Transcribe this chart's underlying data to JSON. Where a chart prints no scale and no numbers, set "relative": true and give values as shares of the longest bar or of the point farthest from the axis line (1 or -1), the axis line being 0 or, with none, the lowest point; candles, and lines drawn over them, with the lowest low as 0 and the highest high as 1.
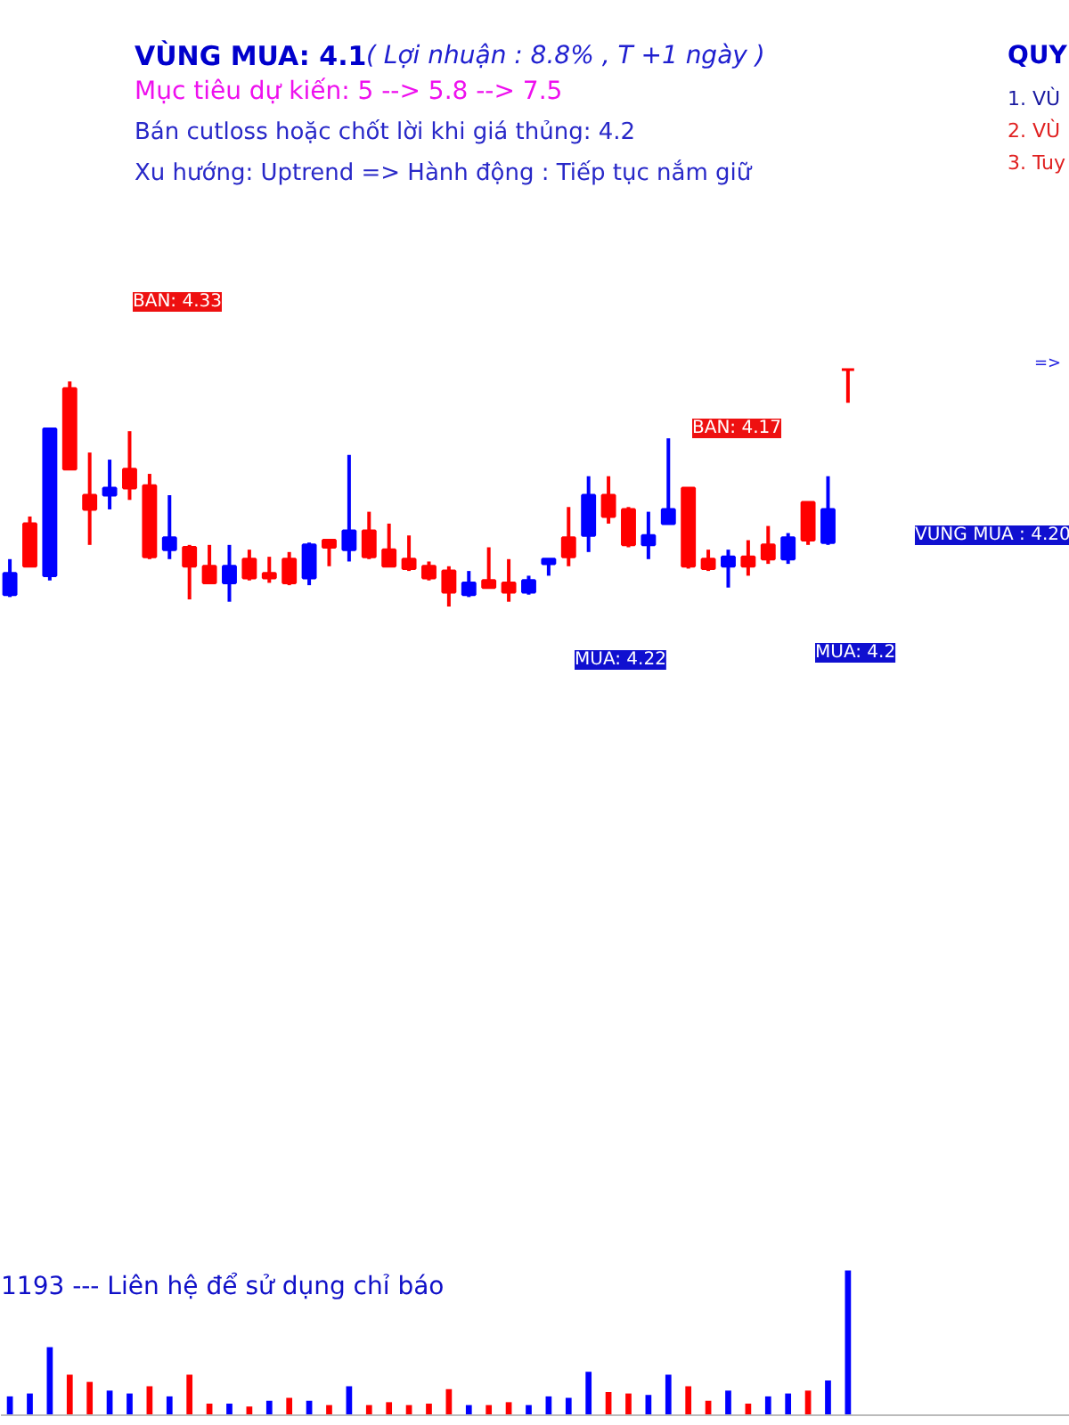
{
  "chart_data": [
    {
      "type": "candlestick",
      "title": "VÙNG MUA:  4.1",
      "subtitle": "( Lợi nhuận  : 8.8% ,  T +1 ngày )",
      "relative": true,
      "annotations": [
        "Mục tiêu dự kiến:  5 --> 5.8 --> 7.5",
        "Bán cutloss hoặc chốt lời khi giá thủng:  4.2",
        "Xu hướng:  Uptrend  => Hành động : Tiếp tục nắm giữ",
        "QUY",
        "1. VÙ",
        "2. VÙ",
        "3. Tuy",
        "=>",
        "MUA: 4.22",
        "MUA: 4.2",
        "BÁN: 4.33",
        "BÁN: 4.17",
        "VÙNG MUA : 4.20"
      ],
      "categories": [
        null,
        null,
        null,
        null,
        null,
        null,
        null,
        null,
        null,
        null,
        null,
        null,
        null,
        null,
        null,
        null,
        null,
        null,
        null,
        null,
        null,
        null,
        null,
        null,
        null,
        null,
        null,
        null,
        null,
        null,
        null,
        null,
        null,
        null,
        null,
        null,
        null,
        null,
        null,
        null,
        null,
        null,
        null
      ],
      "ohlc": [
        [
          0.05,
          0.2,
          0.04,
          0.14
        ],
        [
          0.35,
          0.38,
          0.17,
          0.17
        ],
        [
          0.13,
          0.75,
          0.11,
          0.75
        ],
        [
          0.92,
          0.95,
          0.58,
          0.58
        ],
        [
          0.47,
          0.65,
          0.26,
          0.41
        ],
        [
          0.47,
          0.62,
          0.41,
          0.5
        ],
        [
          0.58,
          0.74,
          0.45,
          0.5
        ],
        [
          0.51,
          0.56,
          0.2,
          0.21
        ],
        [
          0.24,
          0.47,
          0.2,
          0.29
        ],
        [
          0.25,
          0.26,
          0.03,
          0.17
        ],
        [
          0.17,
          0.26,
          0.1,
          0.1
        ],
        [
          0.1,
          0.26,
          0.02,
          0.17
        ],
        [
          0.2,
          0.24,
          0.11,
          0.12
        ],
        [
          0.14,
          0.21,
          0.1,
          0.12
        ],
        [
          0.2,
          0.23,
          0.09,
          0.1
        ],
        [
          0.12,
          0.27,
          0.09,
          0.26
        ],
        [
          0.28,
          0.28,
          0.17,
          0.25
        ],
        [
          0.24,
          0.64,
          0.19,
          0.32
        ],
        [
          0.32,
          0.4,
          0.2,
          0.21
        ],
        [
          0.24,
          0.35,
          0.17,
          0.17
        ],
        [
          0.2,
          0.3,
          0.15,
          0.16
        ],
        [
          0.17,
          0.19,
          0.11,
          0.12
        ],
        [
          0.15,
          0.17,
          0,
          0.06
        ],
        [
          0.05,
          0.15,
          0.04,
          0.1
        ],
        [
          0.11,
          0.25,
          0.08,
          0.08
        ],
        [
          0.1,
          0.2,
          0.02,
          0.06
        ],
        [
          0.06,
          0.13,
          0.05,
          0.11
        ],
        [
          0.18,
          0.2,
          0.13,
          0.2
        ],
        [
          0.29,
          0.42,
          0.17,
          0.21
        ],
        [
          0.3,
          0.55,
          0.23,
          0.47
        ],
        [
          0.47,
          0.55,
          0.35,
          0.38
        ],
        [
          0.41,
          0.42,
          0.25,
          0.26
        ],
        [
          0.26,
          0.4,
          0.2,
          0.3
        ],
        [
          0.35,
          0.71,
          0.35,
          0.41
        ],
        [
          0.5,
          0.5,
          0.16,
          0.17
        ],
        [
          0.2,
          0.24,
          0.15,
          0.16
        ],
        [
          0.17,
          0.24,
          0.08,
          0.21
        ],
        [
          0.21,
          0.28,
          0.13,
          0.17
        ],
        [
          0.26,
          0.34,
          0.18,
          0.2
        ],
        [
          0.2,
          0.31,
          0.18,
          0.29
        ],
        [
          0.44,
          0.44,
          0.26,
          0.28
        ],
        [
          0.27,
          0.55,
          0.26,
          0.41
        ],
        [
          1,
          1,
          0.86,
          1
        ]
      ],
      "colors": [
        "#0000ff",
        "#ff0000",
        "#0000ff",
        "#ff0000",
        "#ff0000",
        "#0000ff",
        "#ff0000",
        "#ff0000",
        "#0000ff",
        "#ff0000",
        "#ff0000",
        "#0000ff",
        "#ff0000",
        "#ff0000",
        "#ff0000",
        "#0000ff",
        "#ff0000",
        "#0000ff",
        "#ff0000",
        "#ff0000",
        "#ff0000",
        "#ff0000",
        "#ff0000",
        "#0000ff",
        "#ff0000",
        "#ff0000",
        "#0000ff",
        "#0000ff",
        "#ff0000",
        "#0000ff",
        "#ff0000",
        "#ff0000",
        "#0000ff",
        "#0000ff",
        "#ff0000",
        "#ff0000",
        "#0000ff",
        "#ff0000",
        "#ff0000",
        "#0000ff",
        "#ff0000",
        "#0000ff",
        "#ff0000"
      ]
    },
    {
      "type": "bar",
      "relative": true,
      "annotations": [
        "1193  --- Liên hệ để sử dụng chỉ báo"
      ],
      "categories": [
        null,
        null,
        null,
        null,
        null,
        null,
        null,
        null,
        null,
        null,
        null,
        null,
        null,
        null,
        null,
        null,
        null,
        null,
        null,
        null,
        null,
        null,
        null,
        null,
        null,
        null,
        null,
        null,
        null,
        null,
        null,
        null,
        null,
        null,
        null,
        null,
        null,
        null,
        null,
        null,
        null,
        null,
        null
      ],
      "values": [
        0.13,
        0.15,
        0.47,
        0.28,
        0.23,
        0.17,
        0.15,
        0.2,
        0.13,
        0.28,
        0.08,
        0.08,
        0.06,
        0.1,
        0.12,
        0.1,
        0.07,
        0.2,
        0.07,
        0.09,
        0.07,
        0.08,
        0.18,
        0.07,
        0.07,
        0.09,
        0.07,
        0.13,
        0.12,
        0.3,
        0.16,
        0.15,
        0.14,
        0.28,
        0.2,
        0.1,
        0.17,
        0.08,
        0.13,
        0.15,
        0.17,
        0.24,
        1
      ],
      "colors": [
        "#0000ff",
        "#0000ff",
        "#0000ff",
        "#ff0000",
        "#ff0000",
        "#0000ff",
        "#0000ff",
        "#ff0000",
        "#0000ff",
        "#ff0000",
        "#ff0000",
        "#0000ff",
        "#ff0000",
        "#0000ff",
        "#ff0000",
        "#0000ff",
        "#ff0000",
        "#0000ff",
        "#ff0000",
        "#ff0000",
        "#ff0000",
        "#ff0000",
        "#ff0000",
        "#0000ff",
        "#ff0000",
        "#ff0000",
        "#0000ff",
        "#0000ff",
        "#0000ff",
        "#0000ff",
        "#ff0000",
        "#ff0000",
        "#0000ff",
        "#0000ff",
        "#ff0000",
        "#ff0000",
        "#0000ff",
        "#ff0000",
        "#0000ff",
        "#0000ff",
        "#ff0000",
        "#0000ff",
        "#0000ff"
      ]
    }
  ]
}
